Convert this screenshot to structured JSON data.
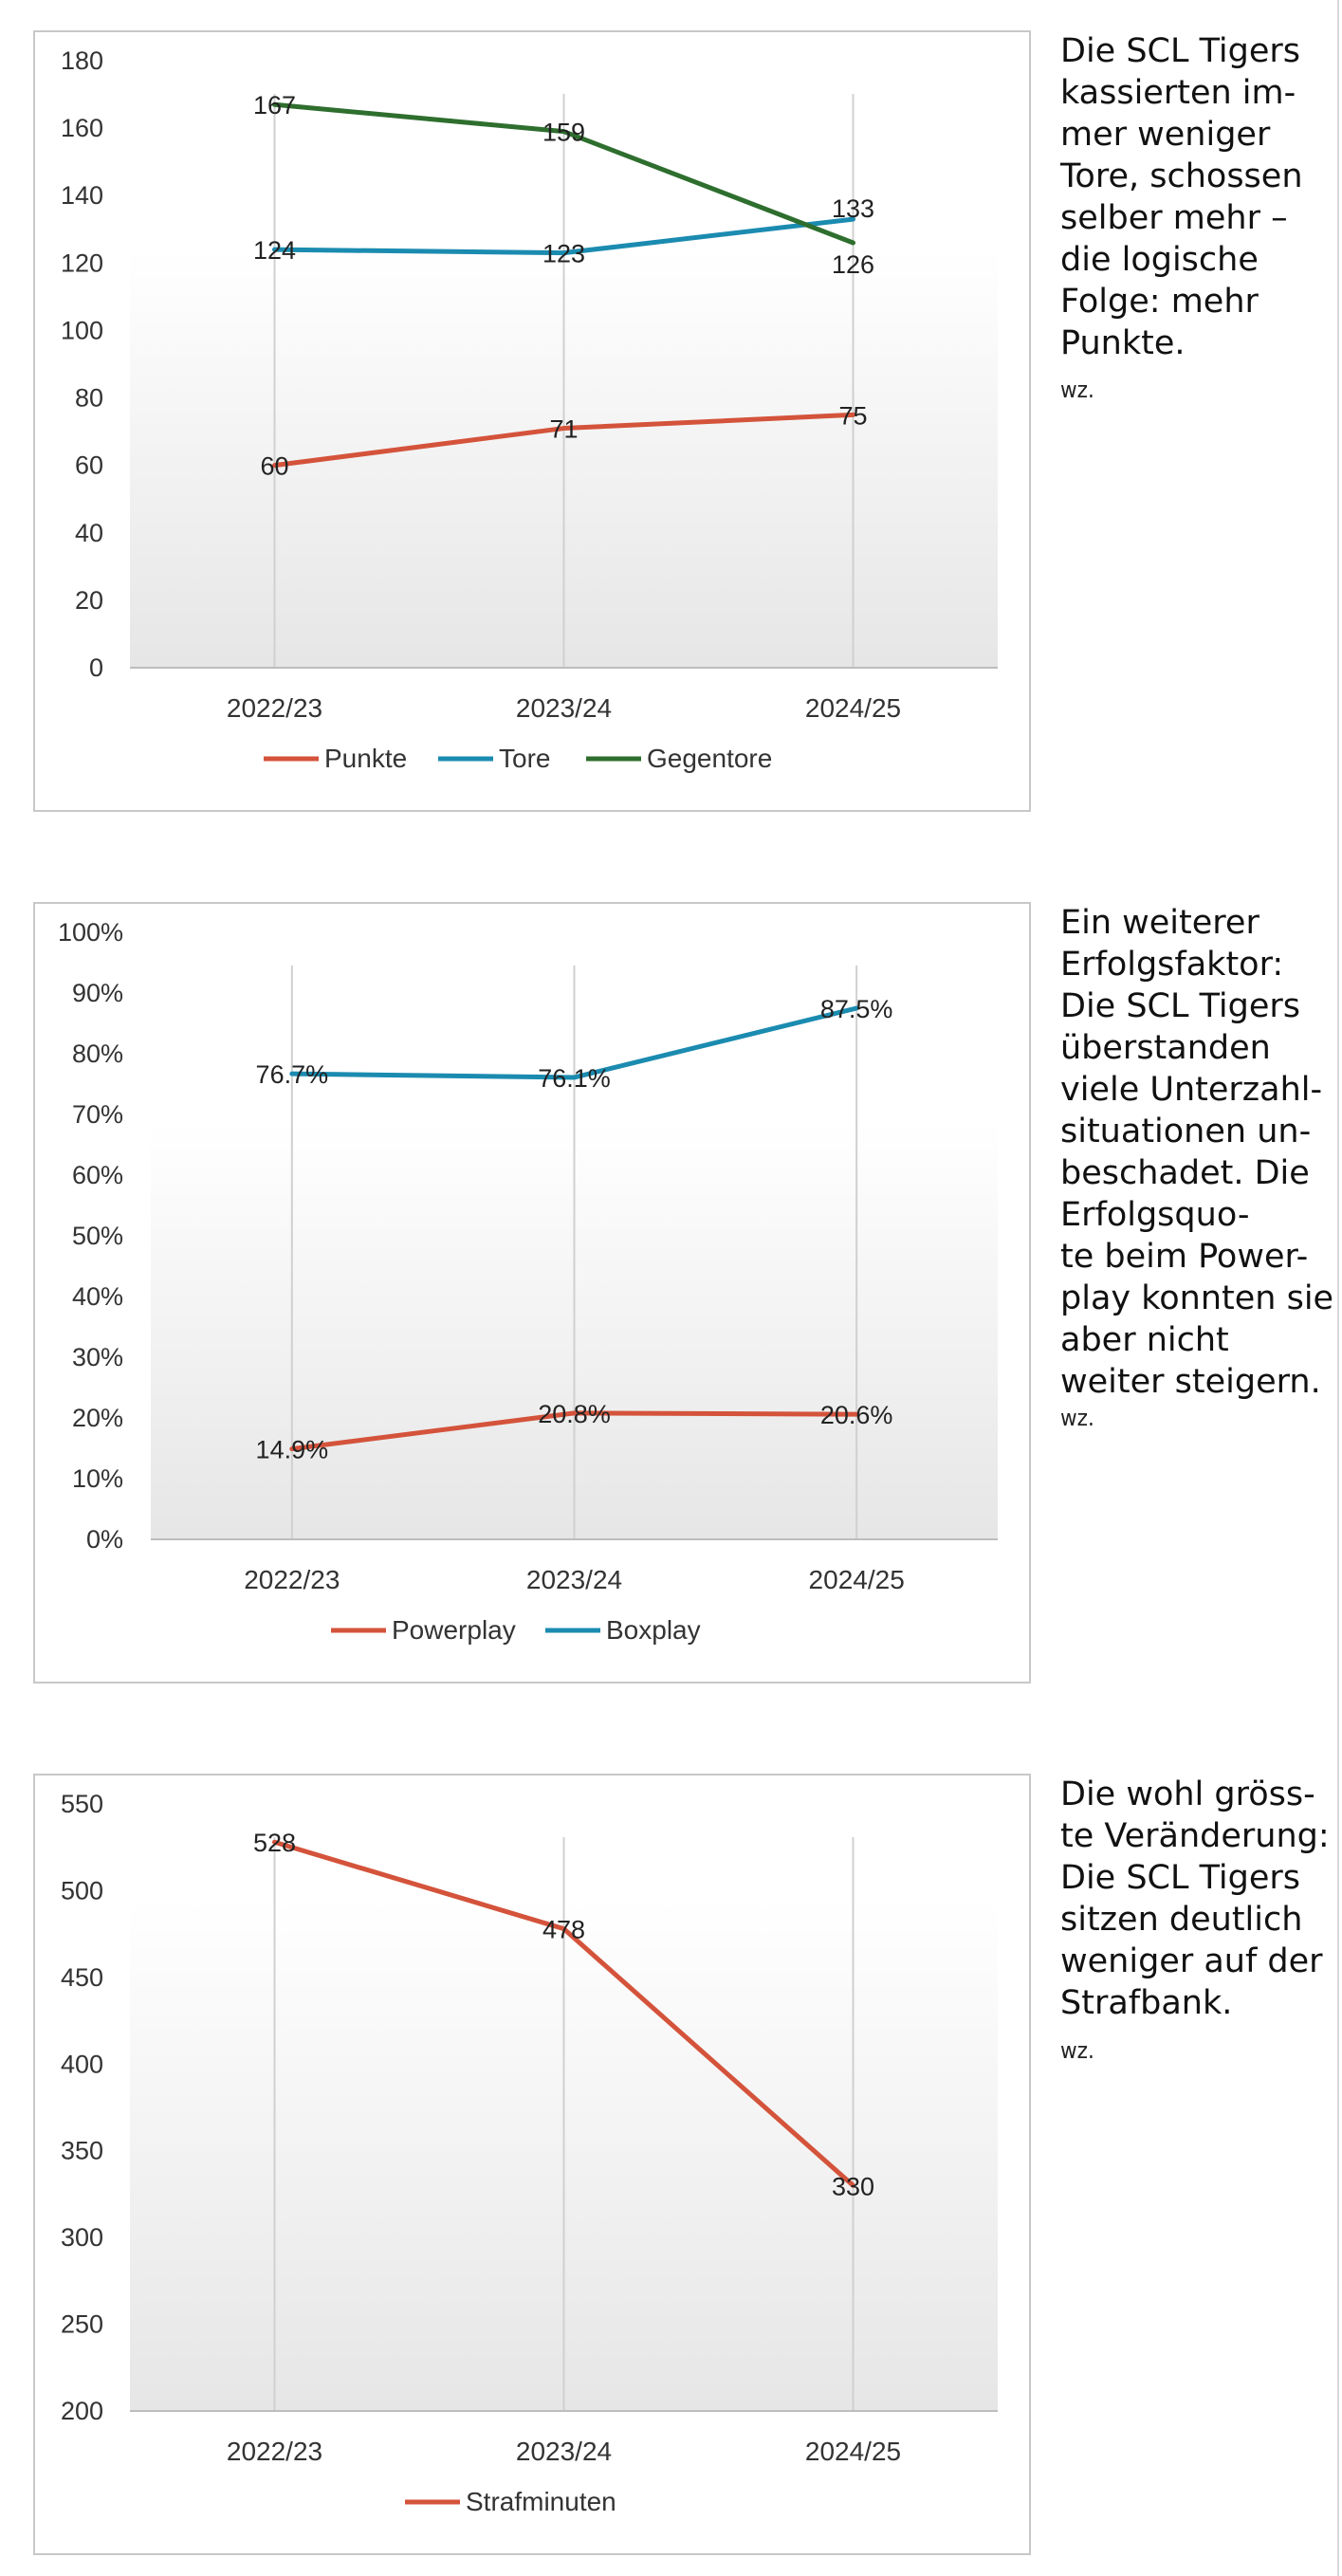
{
  "chart_data": [
    {
      "type": "line",
      "categories": [
        "2022/23",
        "2023/24",
        "2024/25"
      ],
      "series": [
        {
          "name": "Punkte",
          "values": [
            60,
            71,
            75
          ],
          "color": "#d4533b",
          "labels": [
            "60",
            "71",
            "75"
          ]
        },
        {
          "name": "Tore",
          "values": [
            124,
            123,
            133
          ],
          "color": "#1b8bb0",
          "labels": [
            "124",
            "123",
            "133"
          ]
        },
        {
          "name": "Gegentore",
          "values": [
            167,
            159,
            126
          ],
          "color": "#2e6e2e",
          "labels": [
            "167",
            "159",
            "126"
          ]
        }
      ],
      "ylim": [
        0,
        180
      ],
      "yticks": [
        0,
        20,
        40,
        60,
        80,
        100,
        120,
        140,
        160,
        180
      ],
      "ytick_labels": [
        "0",
        "20",
        "40",
        "60",
        "80",
        "100",
        "120",
        "140",
        "160",
        "180"
      ],
      "grid": "vertical",
      "legend": "bottom"
    },
    {
      "type": "line",
      "categories": [
        "2022/23",
        "2023/24",
        "2024/25"
      ],
      "series": [
        {
          "name": "Powerplay",
          "values": [
            14.9,
            20.8,
            20.6
          ],
          "color": "#d4533b",
          "labels": [
            "14.9%",
            "20.8%",
            "20.6%"
          ]
        },
        {
          "name": "Boxplay",
          "values": [
            76.7,
            76.1,
            87.5
          ],
          "color": "#1b8bb0",
          "labels": [
            "76.7%",
            "76.1%",
            "87.5%"
          ]
        }
      ],
      "ylim": [
        0,
        100
      ],
      "yticks": [
        0,
        10,
        20,
        30,
        40,
        50,
        60,
        70,
        80,
        90,
        100
      ],
      "ytick_labels": [
        "0%",
        "10%",
        "20%",
        "30%",
        "40%",
        "50%",
        "60%",
        "70%",
        "80%",
        "90%",
        "100%"
      ],
      "grid": "vertical",
      "legend": "bottom"
    },
    {
      "type": "line",
      "categories": [
        "2022/23",
        "2023/24",
        "2024/25"
      ],
      "series": [
        {
          "name": "Strafminuten",
          "values": [
            528,
            478,
            330
          ],
          "color": "#d4533b",
          "labels": [
            "528",
            "478",
            "330"
          ]
        }
      ],
      "ylim": [
        200,
        550
      ],
      "yticks": [
        200,
        250,
        300,
        350,
        400,
        450,
        500,
        550
      ],
      "ytick_labels": [
        "200",
        "250",
        "300",
        "350",
        "400",
        "450",
        "500",
        "550"
      ],
      "grid": "vertical",
      "legend": "bottom"
    }
  ],
  "captions": [
    {
      "text": "Die SCL Tigers kassierten im-\nmer weniger Tore, schossen selber mehr – die logische Folge: mehr Punkte.",
      "credit": "wz."
    },
    {
      "text": "Ein weiterer Erfolgsfaktor: Die SCL Tigers überstanden viele Unterzahl-\nsituationen un-\nbeschadet. Die Erfolgsquo-\nte beim Power-\nplay konnten sie aber nicht weiter steigern.",
      "credit": "wz."
    },
    {
      "text": "Die wohl gröss-\nte Veränderung: Die SCL Tigers sitzen deutlich weniger auf der Strafbank.",
      "credit": "wz."
    }
  ]
}
